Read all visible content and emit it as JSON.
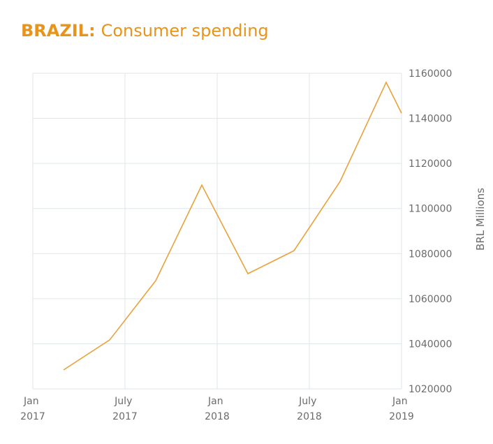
{
  "chart_data": {
    "type": "line",
    "title_prefix": "BRAZIL:",
    "title": "Consumer spending",
    "y_label": "BRL Millions",
    "x": [
      "2017-03",
      "2017-06",
      "2017-09",
      "2017-12",
      "2018-03",
      "2018-06",
      "2018-09",
      "2018-12",
      "2019-01"
    ],
    "series": [
      {
        "name": "Consumer spending",
        "color": "#e9a23b",
        "values": [
          1028400,
          1041700,
          1068000,
          1110400,
          1071100,
          1081300,
          1112000,
          1156000,
          1142300
        ]
      }
    ],
    "xlim": [
      "2017-01",
      "2019-01"
    ],
    "xticks": [
      {
        "value": "2017-01",
        "label": "Jan 2017"
      },
      {
        "value": "2017-07",
        "label": "July 2017"
      },
      {
        "value": "2018-01",
        "label": "Jan 2018"
      },
      {
        "value": "2018-07",
        "label": "July 2018"
      },
      {
        "value": "2019-01",
        "label": "Jan 2019"
      }
    ],
    "ylim": [
      1020000,
      1160000
    ],
    "yticks": [
      1020000,
      1040000,
      1060000,
      1080000,
      1100000,
      1120000,
      1140000,
      1160000
    ],
    "grid": true,
    "y_axis_side": "right"
  }
}
